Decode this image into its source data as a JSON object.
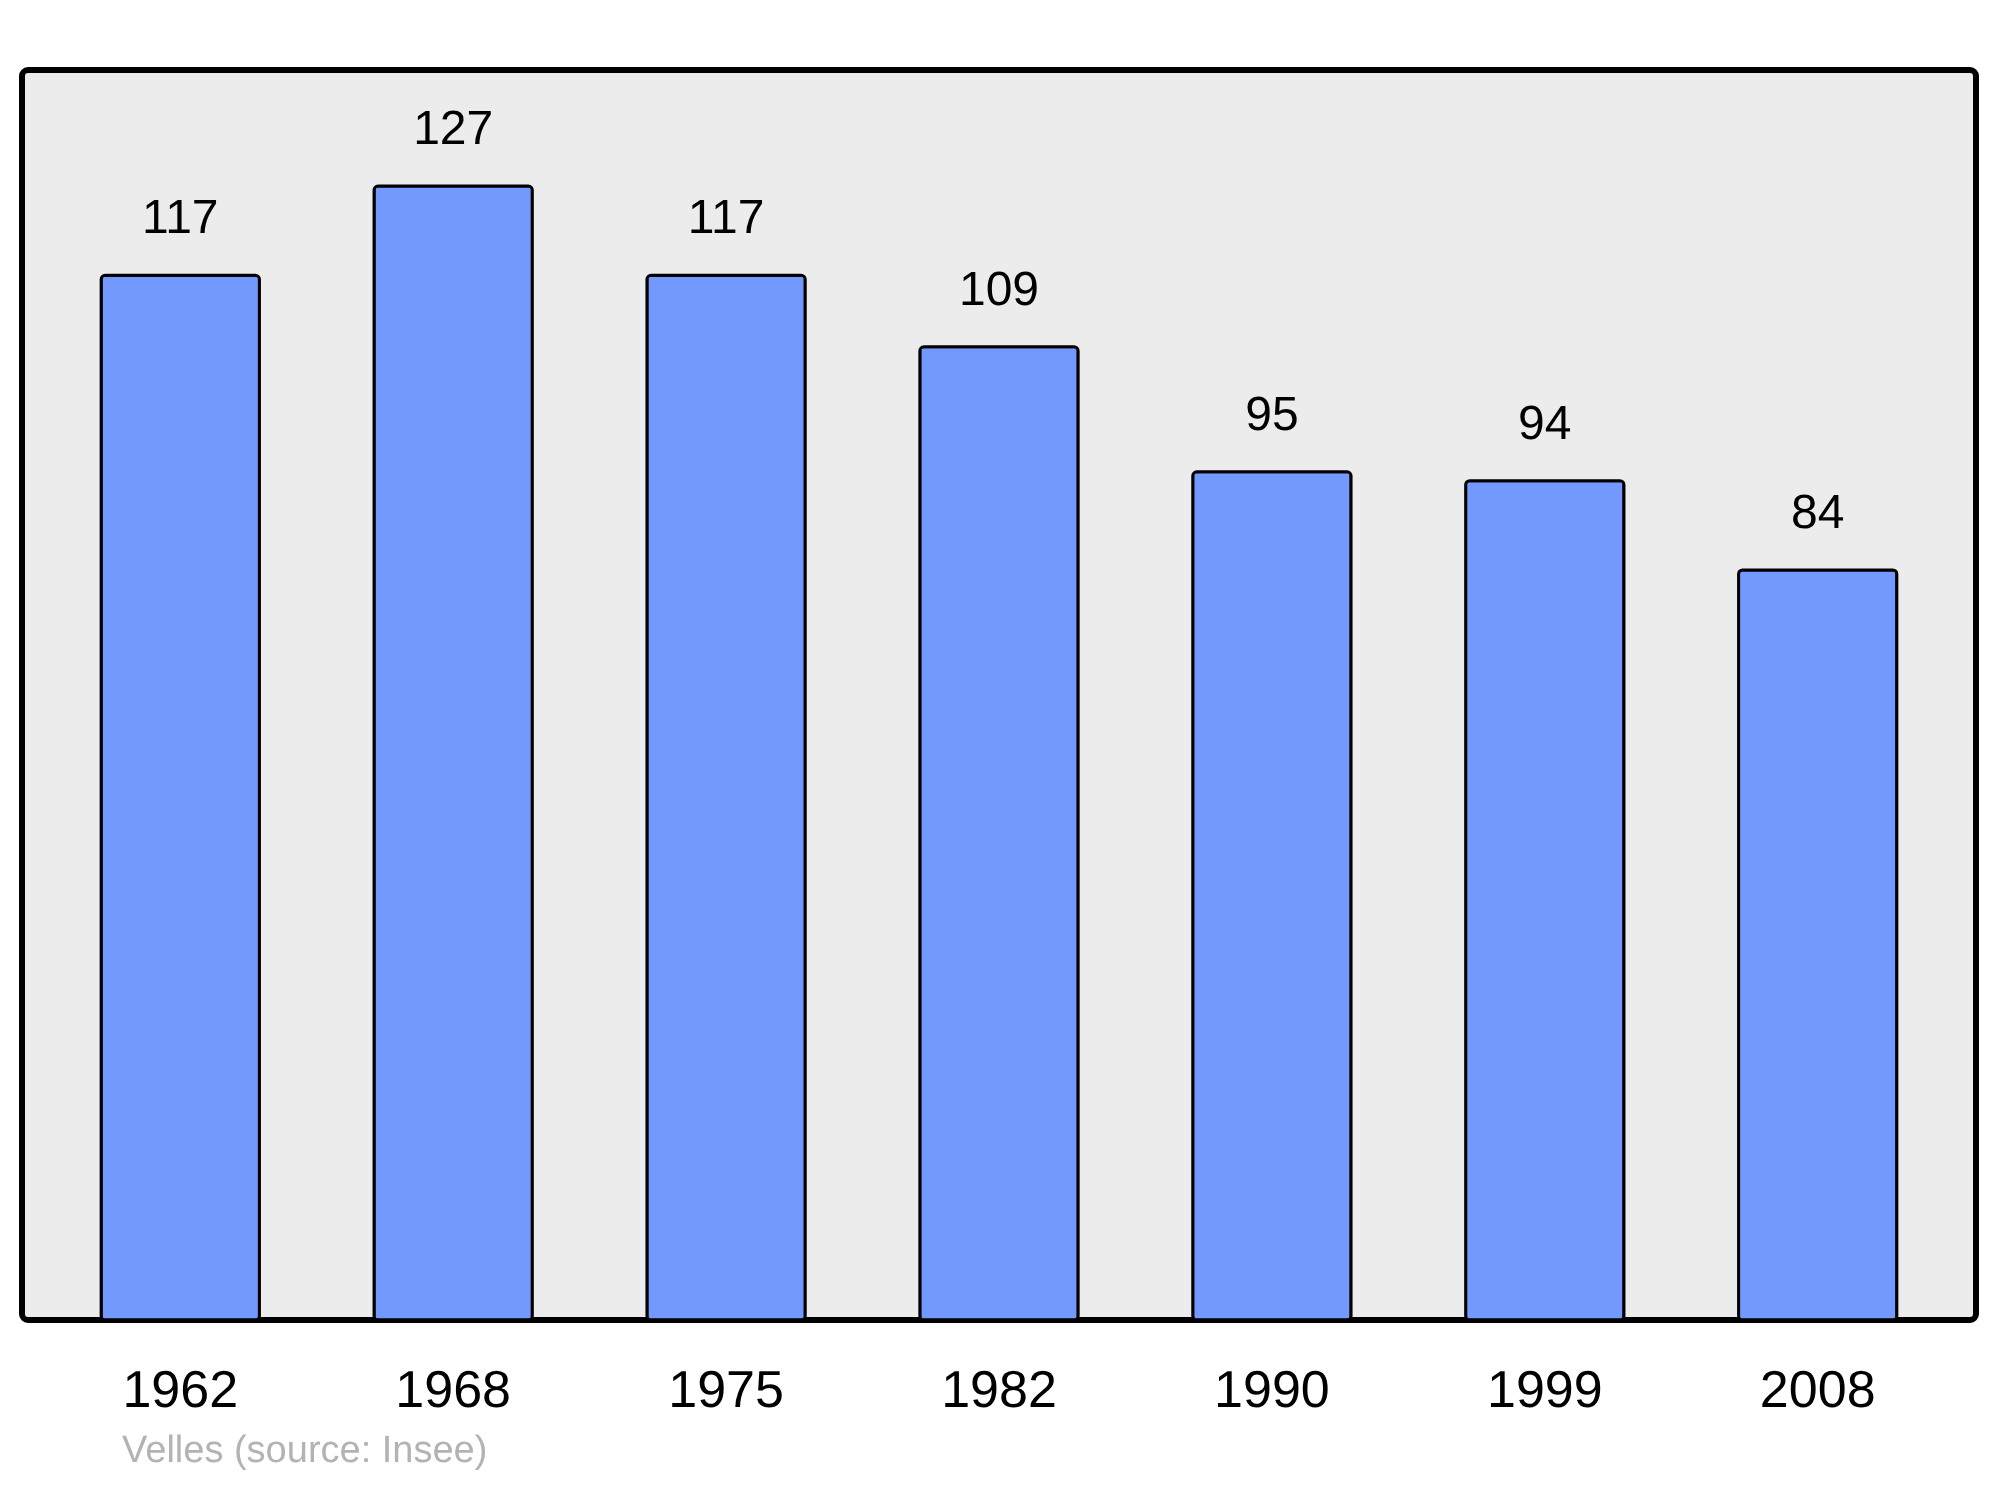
{
  "chart_data": {
    "type": "bar",
    "categories": [
      "1962",
      "1968",
      "1975",
      "1982",
      "1990",
      "1999",
      "2008"
    ],
    "values": [
      117,
      127,
      117,
      109,
      95,
      94,
      84
    ],
    "color": "#7399ff",
    "ylim": [
      0,
      140
    ],
    "tick_labels": "x",
    "data_labels": true,
    "annotations": [
      "Velles    (source: Insee)"
    ]
  }
}
